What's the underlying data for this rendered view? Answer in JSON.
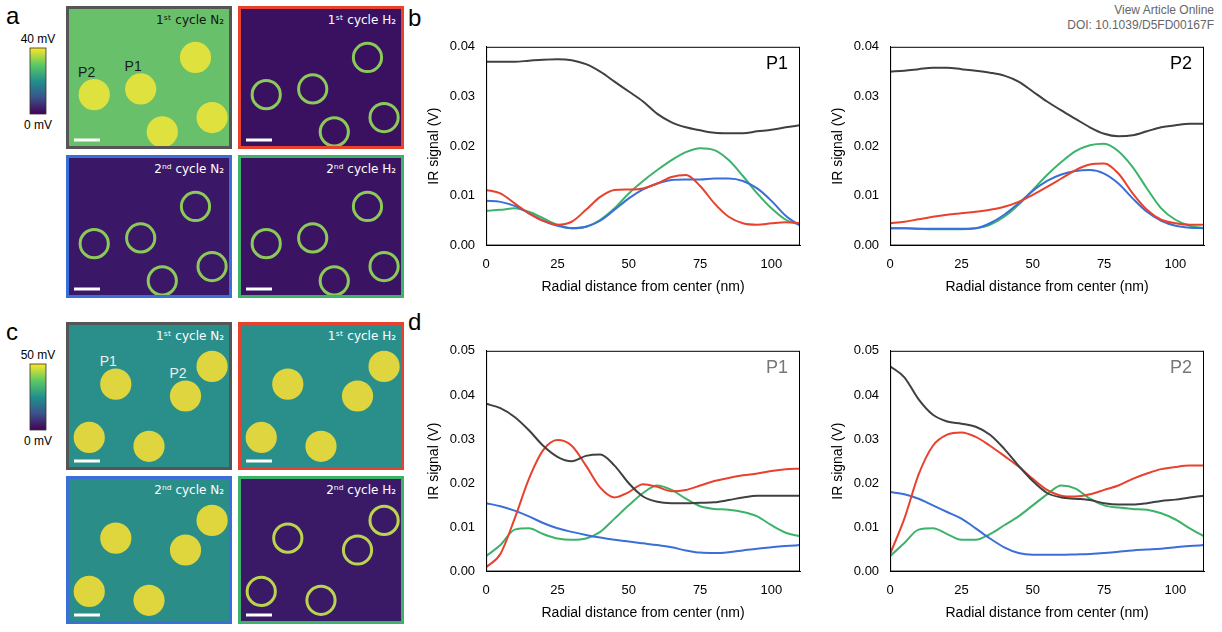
{
  "header": [
    "View Article Online",
    "DOI: 10.1039/D5FD00167F"
  ],
  "image_panels": [
    {
      "letter": "a",
      "colorbar": {
        "range": [
          0,
          40
        ],
        "ticks": [
          {
            "value": 40,
            "label": "40 mV"
          },
          {
            "value": 0,
            "label": "0 mV"
          }
        ]
      },
      "tiles": [
        {
          "title": "1ˢᵗ cycle N₂",
          "color": "#555555",
          "labels": [
            "P2",
            "P1"
          ]
        },
        {
          "title": "1ˢᵗ cycle H₂",
          "color": "#e8412e"
        },
        {
          "title": "2ⁿᵈ cycle N₂",
          "color": "#3a6fd8"
        },
        {
          "title": "2ⁿᵈ cycle H₂",
          "color": "#3db36a"
        }
      ]
    },
    {
      "letter": "c",
      "colorbar": {
        "range": [
          0,
          50
        ],
        "ticks": [
          {
            "value": 50,
            "label": "50 mV"
          },
          {
            "value": 0,
            "label": "0 mV"
          }
        ]
      },
      "tiles": [
        {
          "title": "1ˢᵗ cycle N₂",
          "color": "#555555",
          "labels": [
            "P1",
            "P2"
          ]
        },
        {
          "title": "1ˢᵗ cycle H₂",
          "color": "#e8412e"
        },
        {
          "title": "2ⁿᵈ cycle N₂",
          "color": "#3a6fd8"
        },
        {
          "title": "2ⁿᵈ cycle H₂",
          "color": "#3db36a"
        }
      ]
    }
  ],
  "chart_data": [
    {
      "type": "line",
      "panel": "b",
      "title": "P1",
      "x_label": "Radial distance from center (nm)",
      "y_label": "IR signal (V)",
      "x": [
        0,
        5,
        10,
        15,
        20,
        25,
        30,
        35,
        40,
        45,
        50,
        55,
        60,
        65,
        70,
        75,
        80,
        85,
        90,
        95,
        100,
        105,
        110
      ],
      "xlim": [
        0,
        110
      ],
      "xticks": [
        0,
        25,
        50,
        75,
        100
      ],
      "ylim": [
        0,
        0.04
      ],
      "yticks": [
        {
          "value": 0,
          "label": "0.00"
        },
        {
          "value": 0.01,
          "label": "0.01"
        },
        {
          "value": 0.02,
          "label": "0.02"
        },
        {
          "value": 0.03,
          "label": "0.03"
        },
        {
          "value": 0.04,
          "label": "0.04"
        }
      ],
      "grid": false,
      "series": [
        {
          "color": "#404040",
          "values": [
            0.037,
            0.037,
            0.037,
            0.0372,
            0.0374,
            0.0375,
            0.0373,
            0.0365,
            0.035,
            0.033,
            0.031,
            0.029,
            0.0265,
            0.0248,
            0.0238,
            0.0232,
            0.0227,
            0.0226,
            0.0226,
            0.023,
            0.0233,
            0.0238,
            0.0242
          ]
        },
        {
          "color": "#e8412e",
          "values": [
            0.0112,
            0.0105,
            0.0085,
            0.0065,
            0.005,
            0.0042,
            0.0048,
            0.0072,
            0.0098,
            0.0112,
            0.0113,
            0.0115,
            0.0125,
            0.0138,
            0.0142,
            0.012,
            0.0085,
            0.0058,
            0.0045,
            0.0042,
            0.0045,
            0.0047,
            0.0045
          ]
        },
        {
          "color": "#3a6fd8",
          "values": [
            0.009,
            0.0088,
            0.008,
            0.0065,
            0.005,
            0.004,
            0.0035,
            0.0038,
            0.005,
            0.0072,
            0.0095,
            0.0113,
            0.0125,
            0.0132,
            0.0133,
            0.0133,
            0.0135,
            0.0135,
            0.013,
            0.0115,
            0.009,
            0.006,
            0.004
          ]
        },
        {
          "color": "#3db36a",
          "values": [
            0.007,
            0.0072,
            0.0075,
            0.0068,
            0.0055,
            0.0042,
            0.0035,
            0.0038,
            0.0052,
            0.0075,
            0.0105,
            0.013,
            0.0152,
            0.0172,
            0.0188,
            0.0196,
            0.0192,
            0.0172,
            0.014,
            0.0105,
            0.0075,
            0.0052,
            0.0042
          ]
        }
      ]
    },
    {
      "type": "line",
      "panel": "b",
      "title": "P2",
      "x_label": "Radial distance from center (nm)",
      "y_label": "IR signal (V)",
      "x": [
        0,
        5,
        10,
        15,
        20,
        25,
        30,
        35,
        40,
        45,
        50,
        55,
        60,
        65,
        70,
        75,
        80,
        85,
        90,
        95,
        100,
        105,
        110
      ],
      "xlim": [
        0,
        110
      ],
      "xticks": [
        0,
        25,
        50,
        75,
        100
      ],
      "ylim": [
        0,
        0.04
      ],
      "yticks": [
        {
          "value": 0,
          "label": "0.00"
        },
        {
          "value": 0.01,
          "label": "0.01"
        },
        {
          "value": 0.02,
          "label": "0.02"
        },
        {
          "value": 0.03,
          "label": "0.03"
        },
        {
          "value": 0.04,
          "label": "0.04"
        }
      ],
      "grid": false,
      "series": [
        {
          "color": "#404040",
          "values": [
            0.035,
            0.0352,
            0.0355,
            0.0358,
            0.0358,
            0.0355,
            0.0352,
            0.0348,
            0.0342,
            0.033,
            0.031,
            0.029,
            0.0272,
            0.0255,
            0.0238,
            0.0225,
            0.022,
            0.0222,
            0.023,
            0.0238,
            0.0242,
            0.0245,
            0.0245
          ]
        },
        {
          "color": "#e8412e",
          "values": [
            0.0045,
            0.0048,
            0.0053,
            0.0058,
            0.0062,
            0.0065,
            0.0068,
            0.0072,
            0.0078,
            0.0088,
            0.0102,
            0.0118,
            0.0135,
            0.0152,
            0.0163,
            0.0165,
            0.0145,
            0.0105,
            0.0072,
            0.0052,
            0.0045,
            0.0042,
            0.0042
          ]
        },
        {
          "color": "#3a6fd8",
          "values": [
            0.0035,
            0.0035,
            0.0034,
            0.0034,
            0.0034,
            0.0034,
            0.0035,
            0.0045,
            0.0062,
            0.0085,
            0.011,
            0.013,
            0.0143,
            0.015,
            0.0152,
            0.0145,
            0.0125,
            0.0095,
            0.0068,
            0.005,
            0.004,
            0.0036,
            0.0035
          ]
        },
        {
          "color": "#3db36a",
          "values": [
            0.0035,
            0.0035,
            0.0034,
            0.0033,
            0.0033,
            0.0033,
            0.0035,
            0.0042,
            0.0058,
            0.0082,
            0.0112,
            0.0142,
            0.0168,
            0.019,
            0.0202,
            0.0205,
            0.019,
            0.0158,
            0.0115,
            0.0075,
            0.0052,
            0.004,
            0.0035
          ]
        }
      ]
    },
    {
      "type": "line",
      "panel": "d",
      "title": "P1",
      "x_label": "Radial distance from center (nm)",
      "y_label": "IR signal (V)",
      "x": [
        0,
        5,
        10,
        15,
        20,
        25,
        30,
        35,
        40,
        45,
        50,
        55,
        60,
        65,
        70,
        75,
        80,
        85,
        90,
        95,
        100,
        105,
        110
      ],
      "xlim": [
        0,
        110
      ],
      "xticks": [
        0,
        25,
        50,
        75,
        100
      ],
      "ylim": [
        0,
        0.05
      ],
      "yticks": [
        {
          "value": 0,
          "label": "0.00"
        },
        {
          "value": 0.01,
          "label": "0.01"
        },
        {
          "value": 0.02,
          "label": "0.02"
        },
        {
          "value": 0.03,
          "label": "0.03"
        },
        {
          "value": 0.04,
          "label": "0.04"
        },
        {
          "value": 0.05,
          "label": "0.05"
        }
      ],
      "grid": false,
      "series": [
        {
          "color": "#404040",
          "values": [
            0.038,
            0.037,
            0.035,
            0.032,
            0.0285,
            0.026,
            0.025,
            0.0262,
            0.0265,
            0.024,
            0.02,
            0.017,
            0.0158,
            0.0155,
            0.0155,
            0.0156,
            0.0157,
            0.0162,
            0.0168,
            0.0172,
            0.0172,
            0.0172,
            0.0172
          ]
        },
        {
          "color": "#e8412e",
          "values": [
            0.001,
            0.004,
            0.012,
            0.021,
            0.0275,
            0.0298,
            0.0285,
            0.024,
            0.019,
            0.0168,
            0.018,
            0.0198,
            0.0192,
            0.0182,
            0.0185,
            0.0195,
            0.0205,
            0.0212,
            0.0218,
            0.0222,
            0.0228,
            0.0232,
            0.0233
          ]
        },
        {
          "color": "#3a6fd8",
          "values": [
            0.0155,
            0.0148,
            0.0138,
            0.0125,
            0.011,
            0.0098,
            0.009,
            0.0083,
            0.0077,
            0.0072,
            0.0068,
            0.0064,
            0.006,
            0.0055,
            0.0048,
            0.0043,
            0.0042,
            0.0044,
            0.0048,
            0.0052,
            0.0055,
            0.0058,
            0.006
          ]
        },
        {
          "color": "#3db36a",
          "values": [
            0.0035,
            0.006,
            0.0095,
            0.0098,
            0.0085,
            0.0075,
            0.0072,
            0.0075,
            0.009,
            0.012,
            0.015,
            0.0178,
            0.0195,
            0.0185,
            0.0165,
            0.0148,
            0.0142,
            0.014,
            0.0135,
            0.0125,
            0.0105,
            0.0088,
            0.008
          ]
        }
      ]
    },
    {
      "type": "line",
      "panel": "d",
      "title": "P2",
      "x_label": "Radial distance from center (nm)",
      "y_label": "IR signal (V)",
      "x": [
        0,
        5,
        10,
        15,
        20,
        25,
        30,
        35,
        40,
        45,
        50,
        55,
        60,
        65,
        70,
        75,
        80,
        85,
        90,
        95,
        100,
        105,
        110
      ],
      "xlim": [
        0,
        110
      ],
      "xticks": [
        0,
        25,
        50,
        75,
        100
      ],
      "ylim": [
        0,
        0.05
      ],
      "yticks": [
        {
          "value": 0,
          "label": "0.00"
        },
        {
          "value": 0.01,
          "label": "0.01"
        },
        {
          "value": 0.02,
          "label": "0.02"
        },
        {
          "value": 0.03,
          "label": "0.03"
        },
        {
          "value": 0.04,
          "label": "0.04"
        },
        {
          "value": 0.05,
          "label": "0.05"
        }
      ],
      "grid": false,
      "series": [
        {
          "color": "#404040",
          "values": [
            0.0465,
            0.044,
            0.039,
            0.0355,
            0.034,
            0.0335,
            0.0328,
            0.031,
            0.0278,
            0.024,
            0.0205,
            0.0178,
            0.0168,
            0.0165,
            0.0162,
            0.0155,
            0.0152,
            0.0152,
            0.0155,
            0.016,
            0.0163,
            0.0168,
            0.0172
          ]
        },
        {
          "color": "#e8412e",
          "values": [
            0.004,
            0.012,
            0.022,
            0.0285,
            0.031,
            0.0315,
            0.0305,
            0.0285,
            0.0262,
            0.0238,
            0.021,
            0.0185,
            0.0172,
            0.017,
            0.0175,
            0.0185,
            0.0195,
            0.021,
            0.0222,
            0.0232,
            0.0237,
            0.024,
            0.024
          ]
        },
        {
          "color": "#3a6fd8",
          "values": [
            0.018,
            0.0175,
            0.0165,
            0.015,
            0.0135,
            0.012,
            0.0098,
            0.0075,
            0.0055,
            0.0042,
            0.0038,
            0.0038,
            0.0038,
            0.0039,
            0.004,
            0.0042,
            0.0045,
            0.0048,
            0.005,
            0.0052,
            0.0055,
            0.0058,
            0.006
          ]
        },
        {
          "color": "#3db36a",
          "values": [
            0.0035,
            0.0065,
            0.0095,
            0.0098,
            0.0085,
            0.0072,
            0.0072,
            0.0085,
            0.0105,
            0.0125,
            0.015,
            0.0175,
            0.0195,
            0.0188,
            0.0165,
            0.015,
            0.0145,
            0.0142,
            0.014,
            0.0132,
            0.0118,
            0.0098,
            0.008
          ]
        }
      ]
    }
  ]
}
